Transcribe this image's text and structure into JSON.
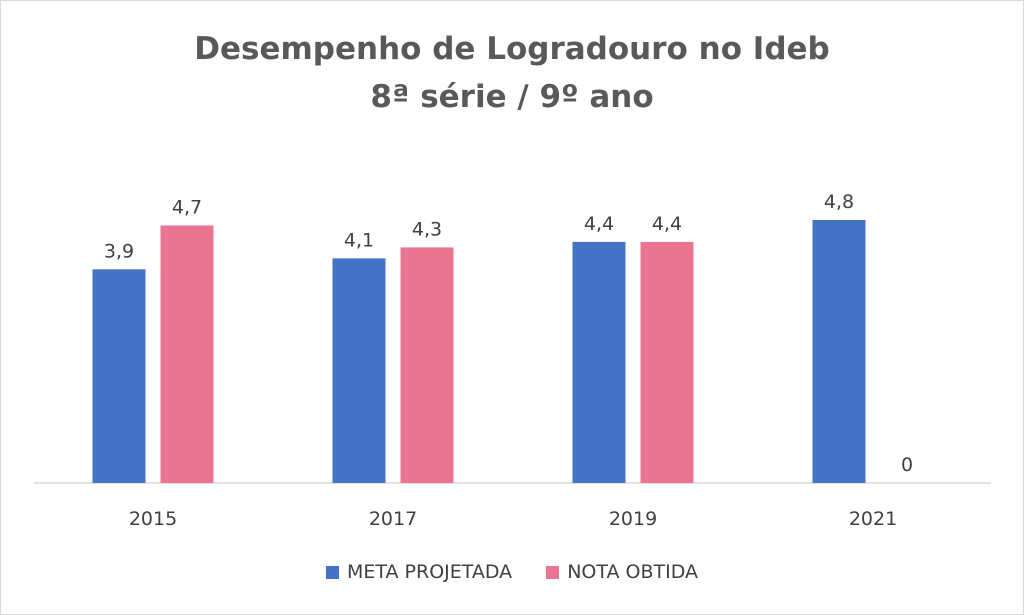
{
  "chart_data": {
    "type": "bar",
    "title": [
      "Desempenho de Logradouro no Ideb",
      "8ª série / 9º ano"
    ],
    "categories": [
      "2015",
      "2017",
      "2019",
      "2021"
    ],
    "series": [
      {
        "name": "META PROJETADA",
        "color": "#4472C4",
        "values": [
          3.9,
          4.1,
          4.4,
          4.8
        ],
        "labels": [
          "3,9",
          "4,1",
          "4,4",
          "4,8"
        ]
      },
      {
        "name": "NOTA OBTIDA",
        "color": "#E97593",
        "values": [
          4.7,
          4.3,
          4.4,
          0
        ],
        "labels": [
          "4,7",
          "4,3",
          "4,4",
          "0"
        ]
      }
    ],
    "ylim": [
      0,
      5
    ],
    "grid": false,
    "legend_position": "bottom"
  }
}
